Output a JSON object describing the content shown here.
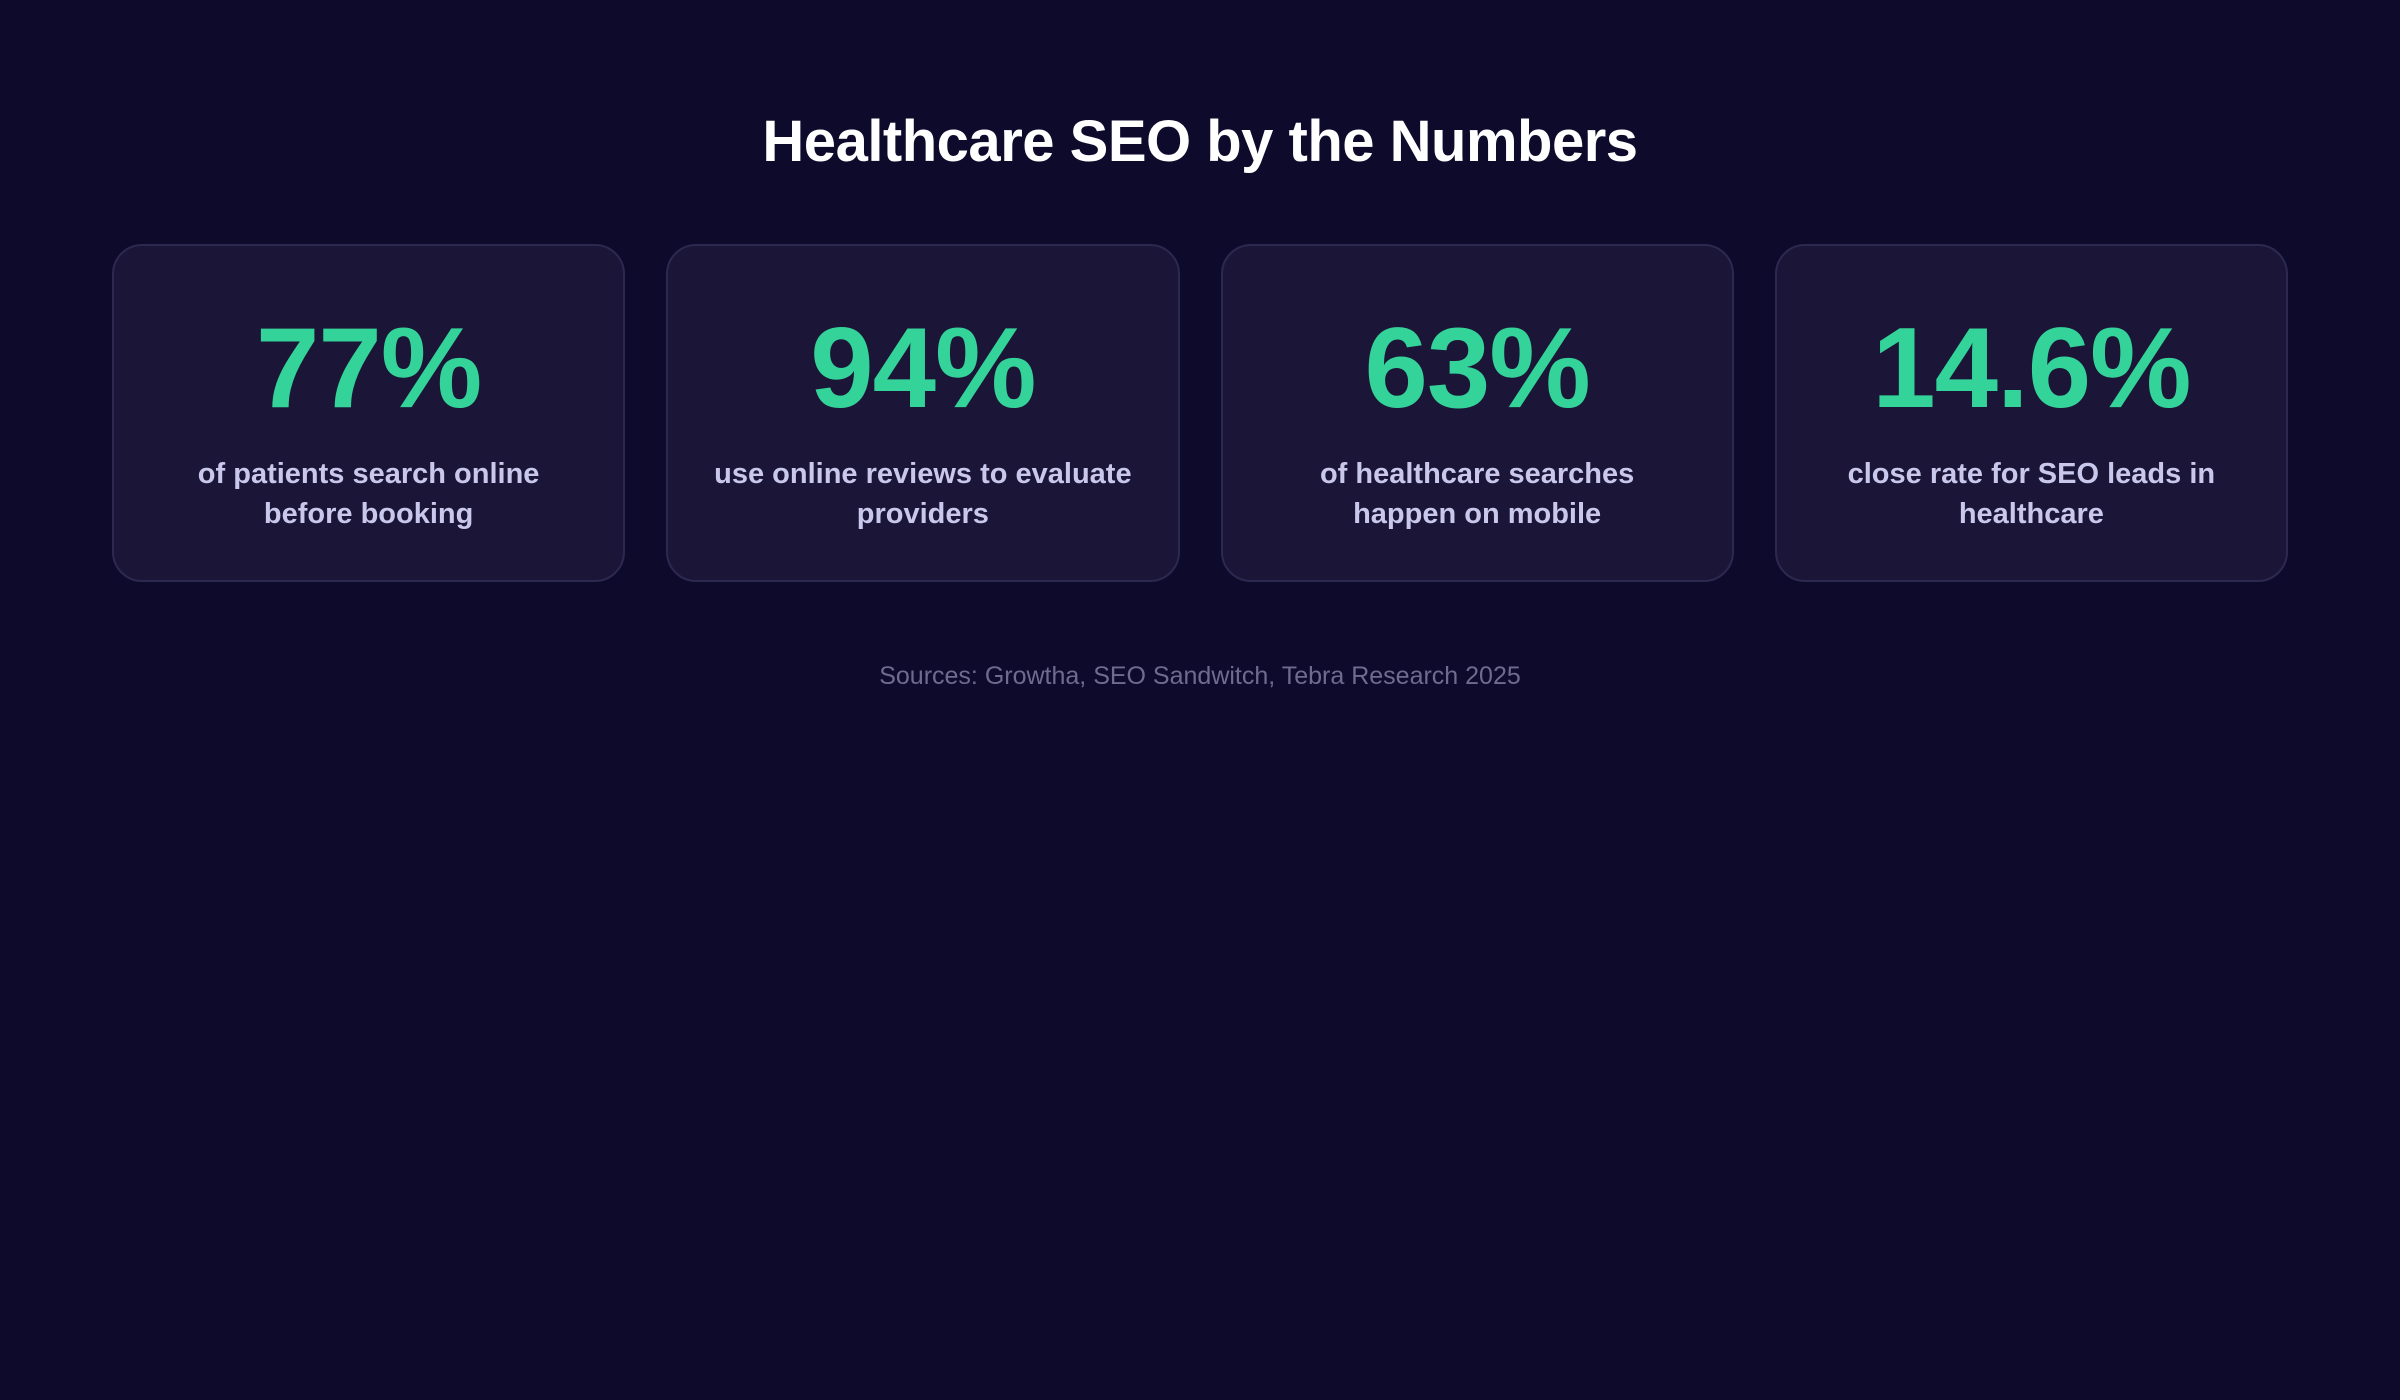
{
  "header": {
    "title": "Healthcare SEO by the Numbers"
  },
  "stats": [
    {
      "value": "77%",
      "label": "of patients search online before booking"
    },
    {
      "value": "94%",
      "label": "use online reviews to evaluate providers"
    },
    {
      "value": "63%",
      "label": "of healthcare searches happen on mobile"
    },
    {
      "value": "14.6%",
      "label": "close rate for SEO leads in healthcare"
    }
  ],
  "footer": {
    "sources": "Sources: Growtha, SEO Sandwitch, Tebra Research 2025"
  },
  "colors": {
    "background": "#0e0a2c",
    "card": "#1b1637",
    "accent": "#34d399",
    "label": "#c9c8ec",
    "muted": "#6f6b8f"
  }
}
